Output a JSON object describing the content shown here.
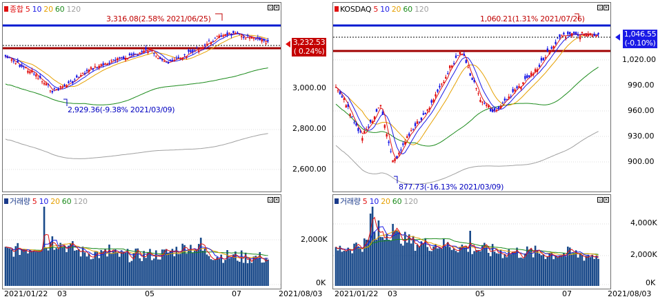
{
  "legend_periods": [
    "5",
    "10",
    "20",
    "60",
    "120"
  ],
  "colors": {
    "ma5": "#e01010",
    "ma10": "#1a1ae6",
    "ma20": "#e6a000",
    "ma60": "#1a8a1a",
    "ma120": "#a0a0a0",
    "up": "#e01010",
    "down": "#1a1ae6",
    "hiline": "#0018d0",
    "loline": "#a00000"
  },
  "kospi": {
    "name": "종합",
    "high_annotation": "3,316.08(2.58% 2021/06/25)",
    "low_annotation": "2,929.36(-9.38% 2021/03/09)",
    "current_price": "3,232.53",
    "current_change": "( 0.24%)",
    "y_ticks": [
      "3,000.00",
      "2,800.00",
      "2,600.00"
    ],
    "volume_title": "거래량",
    "volume_ticks": [
      "2,000K",
      "0K"
    ],
    "x_labels": [
      "2021/01/22",
      "03",
      "05",
      "07",
      "2021/08/03"
    ]
  },
  "kosdaq": {
    "name": "KOSDAQ",
    "high_annotation": "1,060.21(1.31% 2021/07/26)",
    "low_annotation": "877.73(-16.13% 2021/03/09)",
    "current_price": "1,046.55",
    "current_change": "(-0.10%)",
    "y_ticks": [
      "1,020.00",
      "990.00",
      "960.00",
      "930.00",
      "900.00"
    ],
    "volume_title": "거래량",
    "volume_ticks": [
      "4,000K",
      "2,000K",
      "0K"
    ],
    "x_labels": [
      "2021/01/22",
      "03",
      "05",
      "07",
      "2021/08/03"
    ]
  }
}
